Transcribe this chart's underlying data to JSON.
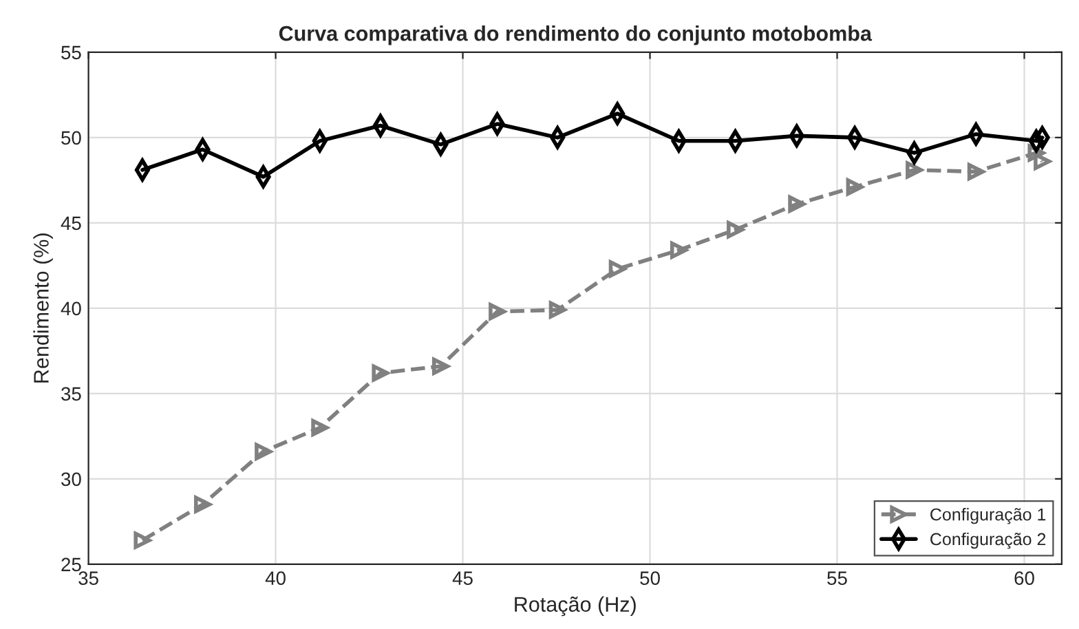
{
  "chart_data": {
    "type": "line",
    "title": "Curva comparativa do rendimento do conjunto motobomba",
    "xlabel": "Rotação (Hz)",
    "ylabel": "Rendimento (%)",
    "xlim": [
      35,
      61
    ],
    "xticks": [
      35,
      40,
      45,
      50,
      55,
      60
    ],
    "ylim": [
      25,
      55
    ],
    "yticks": [
      25,
      30,
      35,
      40,
      45,
      50,
      55
    ],
    "grid": true,
    "legend": "bottom right",
    "series": [
      {
        "name": "Configuração 1",
        "color": "#808080",
        "marker": "triangle",
        "line_style": "dashed",
        "x": [
          36.44,
          38.05,
          39.67,
          41.18,
          42.8,
          44.41,
          45.92,
          47.53,
          49.13,
          50.77,
          52.28,
          53.92,
          55.47,
          57.06,
          58.71,
          60.32,
          60.48
        ],
        "values": [
          26.4,
          28.5,
          31.6,
          33.0,
          36.2,
          36.6,
          39.8,
          39.9,
          42.3,
          43.4,
          44.6,
          46.1,
          47.1,
          48.1,
          48.0,
          49.1,
          48.6
        ]
      },
      {
        "name": "Configuração 2",
        "color": "#000000",
        "marker": "diamond",
        "line_style": "solid",
        "x": [
          36.44,
          38.05,
          39.67,
          41.18,
          42.8,
          44.41,
          45.92,
          47.53,
          49.13,
          50.77,
          52.28,
          53.92,
          55.47,
          57.06,
          58.71,
          60.32,
          60.48
        ],
        "values": [
          48.1,
          49.3,
          47.7,
          49.8,
          50.7,
          49.6,
          50.8,
          50.0,
          51.4,
          49.8,
          49.8,
          50.1,
          50.0,
          49.1,
          50.2,
          49.8,
          50.0
        ]
      }
    ]
  }
}
